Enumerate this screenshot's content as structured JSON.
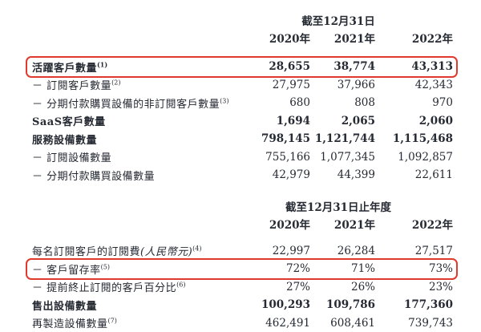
{
  "accent_color": "#e0392e",
  "table1": {
    "period_header": "截至12月31日",
    "years": [
      "2020年",
      "2021年",
      "2022年"
    ],
    "rows": [
      {
        "label": "活躍客戶數量",
        "sup": "(1)",
        "values": [
          "28,655",
          "38,774",
          "43,313"
        ]
      },
      {
        "label": "－ 訂閱客戶數量",
        "sup": "(2)",
        "values": [
          "27,975",
          "37,966",
          "42,343"
        ]
      },
      {
        "label": "－ 分期付款購買設備的非訂閱客戶數量",
        "sup": "(3)",
        "values": [
          "680",
          "808",
          "970"
        ]
      },
      {
        "label": "SaaS客戶數量",
        "values": [
          "1,694",
          "2,065",
          "2,060"
        ]
      },
      {
        "label": "服務設備數量",
        "values": [
          "798,145",
          "1,121,744",
          "1,115,468"
        ]
      },
      {
        "label": "－ 訂閱設備數量",
        "values": [
          "755,166",
          "1,077,345",
          "1,092,857"
        ]
      },
      {
        "label": "－ 分期付款購買設備數量",
        "values": [
          "42,979",
          "44,399",
          "22,611"
        ]
      }
    ]
  },
  "table2": {
    "period_header": "截至12月31日止年度",
    "years": [
      "2020年",
      "2021年",
      "2022年"
    ],
    "rows": [
      {
        "label": "每名訂閱客戶的訂閱費",
        "paren": "(人民幣元)",
        "sup": "(4)",
        "values": [
          "22,997",
          "26,284",
          "27,517"
        ]
      },
      {
        "label": "－ 客戶留存率",
        "sup": "(5)",
        "values": [
          "72%",
          "71%",
          "73%"
        ]
      },
      {
        "label": "－ 提前終止訂閱的客戶百分比",
        "sup": "(6)",
        "values": [
          "27%",
          "26%",
          "23%"
        ]
      },
      {
        "label": "售出設備數量",
        "values": [
          "100,293",
          "109,786",
          "177,360"
        ]
      },
      {
        "label": "再製造設備數量",
        "sup": "(7)",
        "values": [
          "462,491",
          "608,461",
          "739,743"
        ]
      }
    ]
  }
}
